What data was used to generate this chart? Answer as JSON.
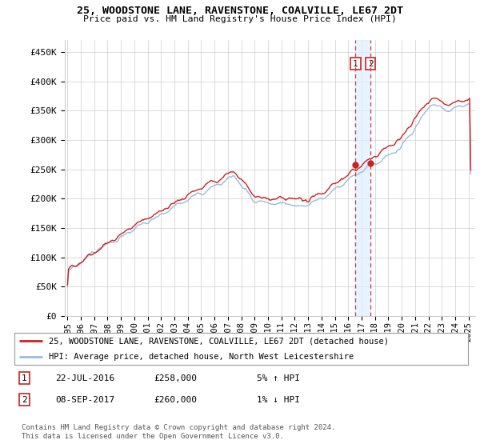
{
  "title": "25, WOODSTONE LANE, RAVENSTONE, COALVILLE, LE67 2DT",
  "subtitle": "Price paid vs. HM Land Registry's House Price Index (HPI)",
  "ylabel_ticks": [
    "£0",
    "£50K",
    "£100K",
    "£150K",
    "£200K",
    "£250K",
    "£300K",
    "£350K",
    "£400K",
    "£450K"
  ],
  "ytick_values": [
    0,
    50000,
    100000,
    150000,
    200000,
    250000,
    300000,
    350000,
    400000,
    450000
  ],
  "ylim": [
    0,
    470000
  ],
  "xlim_start": 1994.8,
  "xlim_end": 2025.5,
  "hpi_color": "#99bbdd",
  "price_color": "#cc2222",
  "bg_color": "#ffffff",
  "grid_color": "#cccccc",
  "legend_label_1": "25, WOODSTONE LANE, RAVENSTONE, COALVILLE, LE67 2DT (detached house)",
  "legend_label_2": "HPI: Average price, detached house, North West Leicestershire",
  "transaction_1": {
    "num": "1",
    "date": "22-JUL-2016",
    "price": "£258,000",
    "pct": "5% ↑ HPI"
  },
  "transaction_2": {
    "num": "2",
    "date": "08-SEP-2017",
    "price": "£260,000",
    "pct": "1% ↓ HPI"
  },
  "t1_x": 2016.55,
  "t1_y": 258000,
  "t2_x": 2017.68,
  "t2_y": 260000,
  "footer": "Contains HM Land Registry data © Crown copyright and database right 2024.\nThis data is licensed under the Open Government Licence v3.0.",
  "xtick_years": [
    1995,
    1996,
    1997,
    1998,
    1999,
    2000,
    2001,
    2002,
    2003,
    2004,
    2005,
    2006,
    2007,
    2008,
    2009,
    2010,
    2011,
    2012,
    2013,
    2014,
    2015,
    2016,
    2017,
    2018,
    2019,
    2020,
    2021,
    2022,
    2023,
    2024,
    2025
  ],
  "shade_color": "#ddeeff",
  "shade_alpha": 0.7
}
